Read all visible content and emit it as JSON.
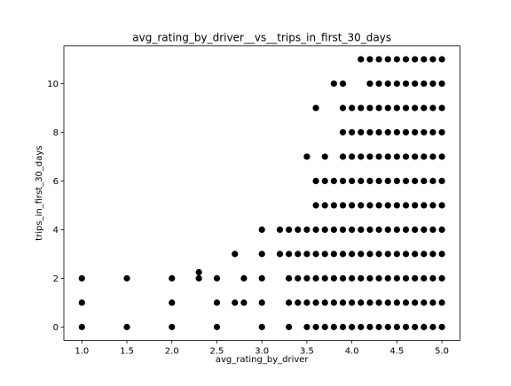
{
  "chart_data": {
    "type": "scatter",
    "title": "avg_rating_by_driver__vs__trips_in_first_30_days",
    "xlabel": "avg_rating_by_driver",
    "ylabel": "trips_in_first_30_days",
    "xlim": [
      0.8,
      5.2
    ],
    "ylim": [
      -0.55,
      11.55
    ],
    "xticks": [
      1.0,
      1.5,
      2.0,
      2.5,
      3.0,
      3.5,
      4.0,
      4.5,
      5.0
    ],
    "xtick_labels": [
      "1.0",
      "1.5",
      "2.0",
      "2.5",
      "3.0",
      "3.5",
      "4.0",
      "4.5",
      "5.0"
    ],
    "yticks": [
      0,
      2,
      4,
      6,
      8,
      10
    ],
    "ytick_labels": [
      "0",
      "2",
      "4",
      "6",
      "8",
      "10"
    ],
    "grid": false,
    "legend": "none",
    "marker_color": "#000000",
    "points": [
      [
        1.0,
        0
      ],
      [
        1.0,
        1
      ],
      [
        1.0,
        2
      ],
      [
        1.5,
        0
      ],
      [
        1.5,
        2
      ],
      [
        2.0,
        0
      ],
      [
        2.0,
        1
      ],
      [
        2.0,
        2
      ],
      [
        2.3,
        2
      ],
      [
        2.3,
        2.25
      ],
      [
        2.5,
        0
      ],
      [
        2.5,
        1
      ],
      [
        2.5,
        2
      ],
      [
        2.7,
        1
      ],
      [
        2.7,
        3
      ],
      [
        2.8,
        1
      ],
      [
        2.8,
        2
      ],
      [
        3.0,
        0
      ],
      [
        3.0,
        1
      ],
      [
        3.0,
        2
      ],
      [
        3.0,
        3
      ],
      [
        3.0,
        4
      ],
      [
        3.2,
        3
      ],
      [
        3.2,
        4
      ],
      [
        3.3,
        0
      ],
      [
        3.3,
        1
      ],
      [
        3.3,
        2
      ],
      [
        3.3,
        3
      ],
      [
        3.3,
        4
      ],
      [
        3.4,
        1
      ],
      [
        3.4,
        2
      ],
      [
        3.4,
        3
      ],
      [
        3.4,
        4
      ],
      [
        3.5,
        0
      ],
      [
        3.5,
        1
      ],
      [
        3.5,
        2
      ],
      [
        3.5,
        3
      ],
      [
        3.5,
        4
      ],
      [
        3.5,
        7
      ],
      [
        3.6,
        0
      ],
      [
        3.6,
        1
      ],
      [
        3.6,
        2
      ],
      [
        3.6,
        3
      ],
      [
        3.6,
        4
      ],
      [
        3.6,
        5
      ],
      [
        3.6,
        6
      ],
      [
        3.6,
        9
      ],
      [
        3.7,
        0
      ],
      [
        3.7,
        1
      ],
      [
        3.7,
        2
      ],
      [
        3.7,
        3
      ],
      [
        3.7,
        4
      ],
      [
        3.7,
        5
      ],
      [
        3.7,
        6
      ],
      [
        3.7,
        7
      ],
      [
        3.8,
        0
      ],
      [
        3.8,
        1
      ],
      [
        3.8,
        2
      ],
      [
        3.8,
        3
      ],
      [
        3.8,
        4
      ],
      [
        3.8,
        5
      ],
      [
        3.8,
        6
      ],
      [
        3.8,
        10
      ],
      [
        3.9,
        0
      ],
      [
        3.9,
        1
      ],
      [
        3.9,
        2
      ],
      [
        3.9,
        3
      ],
      [
        3.9,
        4
      ],
      [
        3.9,
        5
      ],
      [
        3.9,
        6
      ],
      [
        3.9,
        7
      ],
      [
        3.9,
        8
      ],
      [
        3.9,
        9
      ],
      [
        3.9,
        10
      ],
      [
        4.0,
        0
      ],
      [
        4.0,
        1
      ],
      [
        4.0,
        2
      ],
      [
        4.0,
        3
      ],
      [
        4.0,
        4
      ],
      [
        4.0,
        5
      ],
      [
        4.0,
        6
      ],
      [
        4.0,
        7
      ],
      [
        4.0,
        8
      ],
      [
        4.0,
        9
      ],
      [
        4.1,
        0
      ],
      [
        4.1,
        1
      ],
      [
        4.1,
        2
      ],
      [
        4.1,
        3
      ],
      [
        4.1,
        4
      ],
      [
        4.1,
        5
      ],
      [
        4.1,
        6
      ],
      [
        4.1,
        7
      ],
      [
        4.1,
        8
      ],
      [
        4.1,
        9
      ],
      [
        4.1,
        11
      ],
      [
        4.2,
        0
      ],
      [
        4.2,
        1
      ],
      [
        4.2,
        2
      ],
      [
        4.2,
        3
      ],
      [
        4.2,
        4
      ],
      [
        4.2,
        5
      ],
      [
        4.2,
        6
      ],
      [
        4.2,
        7
      ],
      [
        4.2,
        8
      ],
      [
        4.2,
        9
      ],
      [
        4.2,
        10
      ],
      [
        4.2,
        11
      ],
      [
        4.3,
        0
      ],
      [
        4.3,
        1
      ],
      [
        4.3,
        2
      ],
      [
        4.3,
        3
      ],
      [
        4.3,
        4
      ],
      [
        4.3,
        5
      ],
      [
        4.3,
        6
      ],
      [
        4.3,
        7
      ],
      [
        4.3,
        8
      ],
      [
        4.3,
        9
      ],
      [
        4.3,
        10
      ],
      [
        4.3,
        11
      ],
      [
        4.4,
        0
      ],
      [
        4.4,
        1
      ],
      [
        4.4,
        2
      ],
      [
        4.4,
        3
      ],
      [
        4.4,
        4
      ],
      [
        4.4,
        5
      ],
      [
        4.4,
        6
      ],
      [
        4.4,
        7
      ],
      [
        4.4,
        8
      ],
      [
        4.4,
        9
      ],
      [
        4.4,
        10
      ],
      [
        4.4,
        11
      ],
      [
        4.5,
        0
      ],
      [
        4.5,
        1
      ],
      [
        4.5,
        2
      ],
      [
        4.5,
        3
      ],
      [
        4.5,
        4
      ],
      [
        4.5,
        5
      ],
      [
        4.5,
        6
      ],
      [
        4.5,
        7
      ],
      [
        4.5,
        8
      ],
      [
        4.5,
        9
      ],
      [
        4.5,
        10
      ],
      [
        4.5,
        11
      ],
      [
        4.6,
        0
      ],
      [
        4.6,
        1
      ],
      [
        4.6,
        2
      ],
      [
        4.6,
        3
      ],
      [
        4.6,
        4
      ],
      [
        4.6,
        5
      ],
      [
        4.6,
        6
      ],
      [
        4.6,
        7
      ],
      [
        4.6,
        8
      ],
      [
        4.6,
        9
      ],
      [
        4.6,
        10
      ],
      [
        4.6,
        11
      ],
      [
        4.7,
        0
      ],
      [
        4.7,
        1
      ],
      [
        4.7,
        2
      ],
      [
        4.7,
        3
      ],
      [
        4.7,
        4
      ],
      [
        4.7,
        5
      ],
      [
        4.7,
        6
      ],
      [
        4.7,
        7
      ],
      [
        4.7,
        8
      ],
      [
        4.7,
        9
      ],
      [
        4.7,
        10
      ],
      [
        4.7,
        11
      ],
      [
        4.8,
        0
      ],
      [
        4.8,
        1
      ],
      [
        4.8,
        2
      ],
      [
        4.8,
        3
      ],
      [
        4.8,
        4
      ],
      [
        4.8,
        5
      ],
      [
        4.8,
        6
      ],
      [
        4.8,
        7
      ],
      [
        4.8,
        8
      ],
      [
        4.8,
        9
      ],
      [
        4.8,
        10
      ],
      [
        4.8,
        11
      ],
      [
        4.9,
        0
      ],
      [
        4.9,
        1
      ],
      [
        4.9,
        2
      ],
      [
        4.9,
        3
      ],
      [
        4.9,
        4
      ],
      [
        4.9,
        5
      ],
      [
        4.9,
        6
      ],
      [
        4.9,
        7
      ],
      [
        4.9,
        8
      ],
      [
        4.9,
        9
      ],
      [
        4.9,
        10
      ],
      [
        4.9,
        11
      ],
      [
        5.0,
        0
      ],
      [
        5.0,
        1
      ],
      [
        5.0,
        2
      ],
      [
        5.0,
        3
      ],
      [
        5.0,
        4
      ],
      [
        5.0,
        5
      ],
      [
        5.0,
        6
      ],
      [
        5.0,
        7
      ],
      [
        5.0,
        8
      ],
      [
        5.0,
        9
      ],
      [
        5.0,
        10
      ],
      [
        5.0,
        11
      ]
    ]
  }
}
